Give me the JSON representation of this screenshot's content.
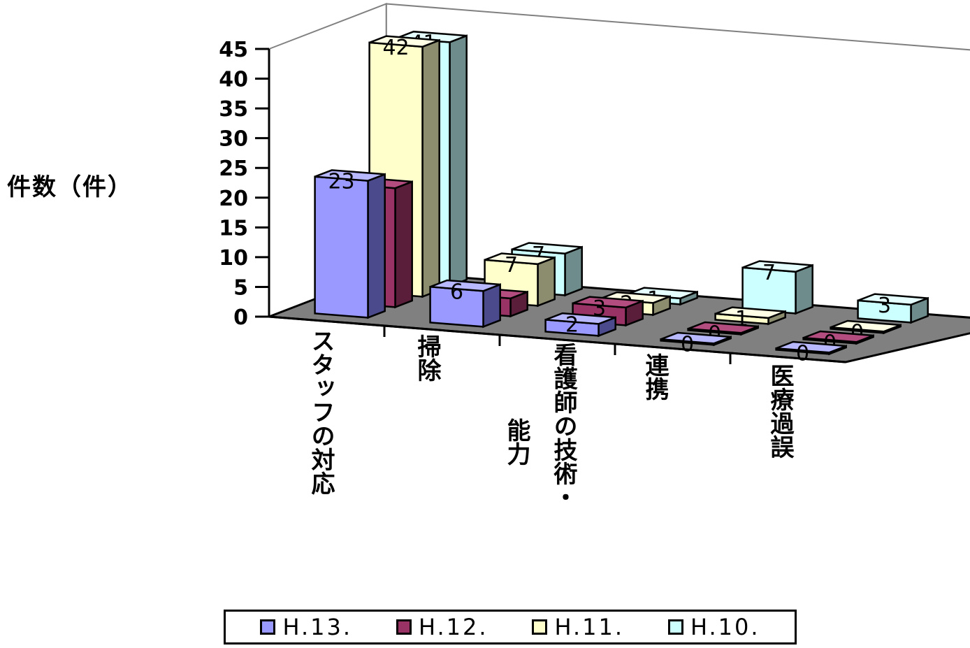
{
  "chart_data": {
    "type": "bar",
    "ylabel": "件数（件）",
    "ylim": [
      0,
      45
    ],
    "yticks": [
      "0",
      "5",
      "10",
      "15",
      "20",
      "25",
      "30",
      "35",
      "40",
      "45"
    ],
    "categories": [
      "スタッフの対応",
      "掃除",
      "看護師の技術・能力",
      "連携",
      "医療過誤"
    ],
    "series": [
      {
        "name": "H.13.",
        "values": [
          23,
          6,
          2,
          0,
          0
        ],
        "color": "#9999ff",
        "side": "#4a4a8c",
        "top": "#b8b8ff"
      },
      {
        "name": "H.12.",
        "values": [
          20,
          3,
          3,
          0,
          0
        ],
        "color": "#993366",
        "side": "#5a1d3a",
        "top": "#b34d80"
      },
      {
        "name": "H.11.",
        "values": [
          42,
          7,
          2,
          1,
          0
        ],
        "color": "#ffffcc",
        "side": "#8c8c6e",
        "top": "#ffffe6"
      },
      {
        "name": "H.10.",
        "values": [
          41,
          7,
          1,
          7,
          3
        ],
        "color": "#ccffff",
        "side": "#6e8c8c",
        "top": "#e6ffff"
      }
    ],
    "grid": false,
    "legend_position": "bottom",
    "floor_color": "#808080"
  },
  "labels": {
    "cat0": "スタッフの対応",
    "cat1": "掃除",
    "cat2a": "看護師の技術・",
    "cat2b": "能力",
    "cat3": "連携",
    "cat4": "医療過誤"
  }
}
